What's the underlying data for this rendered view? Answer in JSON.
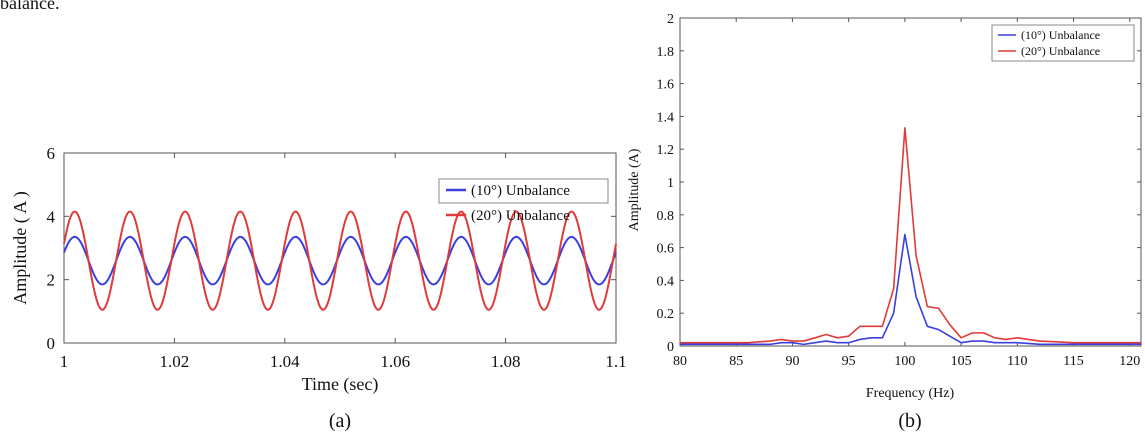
{
  "header_fragment": "balance.",
  "colors": {
    "blue": "#3b3fe0",
    "red": "#e03a3a",
    "axis": "#555555"
  },
  "chart_data": [
    {
      "type": "line",
      "caption": "(a)",
      "xlabel": "Time (sec)",
      "ylabel": "Amplitude ( A )",
      "xlim": [
        1.0,
        1.1
      ],
      "ylim": [
        0,
        6
      ],
      "xticks": [
        1.0,
        1.02,
        1.04,
        1.06,
        1.08,
        1.1
      ],
      "xtick_labels": [
        "1",
        "1.02",
        "1.04",
        "1.06",
        "1.08",
        "1.1"
      ],
      "yticks": [
        0,
        2,
        4,
        6
      ],
      "ytick_labels": [
        "0",
        "2",
        "4",
        "6"
      ],
      "legend_position": "top-right",
      "waveform_period_sec": 0.01,
      "series": [
        {
          "name": "(10°) Unbalance",
          "color": "#3b3fe0",
          "mean": 2.6,
          "amplitude": 0.75,
          "min": 1.85,
          "max": 3.35
        },
        {
          "name": "(20°) Unbalance",
          "color": "#e03a3a",
          "mean": 2.6,
          "amplitude": 1.55,
          "min": 1.05,
          "max": 4.15
        }
      ]
    },
    {
      "type": "line",
      "caption": "(b)",
      "xlabel": "Frequency (Hz)",
      "ylabel": "Amplitude (A)",
      "xlim": [
        80,
        121
      ],
      "ylim": [
        0,
        2
      ],
      "xticks": [
        80,
        85,
        90,
        95,
        100,
        105,
        110,
        115,
        120
      ],
      "xtick_labels": [
        "80",
        "85",
        "90",
        "95",
        "100",
        "105",
        "110",
        "115",
        "120"
      ],
      "yticks": [
        0,
        0.2,
        0.4,
        0.6,
        0.8,
        1,
        1.2,
        1.4,
        1.6,
        1.8,
        2
      ],
      "ytick_labels": [
        "0",
        "0.2",
        "0.4",
        "0.6",
        "0.8",
        "1",
        "1.2",
        "1.4",
        "1.6",
        "1.8",
        "2"
      ],
      "legend_position": "top-right",
      "series": [
        {
          "name": "(10°) Unbalance",
          "color": "#3b3fe0",
          "x": [
            80,
            82,
            84,
            86,
            88,
            89,
            90,
            91,
            92,
            93,
            94,
            95,
            96,
            97,
            98,
            99,
            100,
            101,
            102,
            103,
            104,
            105,
            106,
            107,
            108,
            109,
            110,
            112,
            115,
            118,
            121
          ],
          "y": [
            0.01,
            0.01,
            0.01,
            0.01,
            0.01,
            0.02,
            0.02,
            0.01,
            0.02,
            0.03,
            0.02,
            0.02,
            0.04,
            0.05,
            0.05,
            0.2,
            0.68,
            0.3,
            0.12,
            0.1,
            0.06,
            0.02,
            0.03,
            0.03,
            0.02,
            0.02,
            0.02,
            0.01,
            0.01,
            0.01,
            0.01
          ]
        },
        {
          "name": "(20°) Unbalance",
          "color": "#e03a3a",
          "x": [
            80,
            82,
            84,
            86,
            88,
            89,
            90,
            91,
            92,
            93,
            94,
            95,
            96,
            97,
            98,
            99,
            100,
            101,
            102,
            103,
            104,
            105,
            106,
            107,
            108,
            109,
            110,
            112,
            115,
            118,
            121
          ],
          "y": [
            0.02,
            0.02,
            0.02,
            0.02,
            0.03,
            0.04,
            0.03,
            0.03,
            0.05,
            0.07,
            0.05,
            0.06,
            0.12,
            0.12,
            0.12,
            0.35,
            1.33,
            0.55,
            0.24,
            0.23,
            0.13,
            0.05,
            0.08,
            0.08,
            0.05,
            0.04,
            0.05,
            0.03,
            0.02,
            0.02,
            0.02
          ]
        }
      ]
    }
  ]
}
